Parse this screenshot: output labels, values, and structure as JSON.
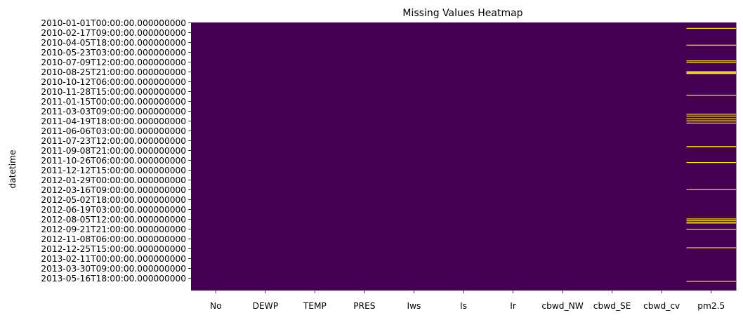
{
  "chart_data": {
    "type": "heatmap",
    "title": "Missing Values Heatmap",
    "xlabel": "",
    "ylabel": "datetime",
    "columns": [
      "No",
      "DEWP",
      "TEMP",
      "PRES",
      "Iws",
      "Is",
      "Ir",
      "cbwd_NW",
      "cbwd_SE",
      "cbwd_cv",
      "pm2.5"
    ],
    "y_tick_labels": [
      "2010-01-01T00:00:00.000000000",
      "2010-02-17T09:00:00.000000000",
      "2010-04-05T18:00:00.000000000",
      "2010-05-23T03:00:00.000000000",
      "2010-07-09T12:00:00.000000000",
      "2010-08-25T21:00:00.000000000",
      "2010-10-12T06:00:00.000000000",
      "2010-11-28T15:00:00.000000000",
      "2011-01-15T00:00:00.000000000",
      "2011-03-03T09:00:00.000000000",
      "2011-04-19T18:00:00.000000000",
      "2011-06-06T03:00:00.000000000",
      "2011-07-23T12:00:00.000000000",
      "2011-09-08T21:00:00.000000000",
      "2011-10-26T06:00:00.000000000",
      "2011-12-12T15:00:00.000000000",
      "2012-01-29T00:00:00.000000000",
      "2012-03-16T09:00:00.000000000",
      "2012-05-02T18:00:00.000000000",
      "2012-06-19T03:00:00.000000000",
      "2012-08-05T12:00:00.000000000",
      "2012-09-21T21:00:00.000000000",
      "2012-11-08T06:00:00.000000000",
      "2012-12-25T15:00:00.000000000",
      "2013-02-11T00:00:00.000000000",
      "2013-03-30T09:00:00.000000000",
      "2013-05-16T18:00:00.000000000"
    ],
    "values_legend": {
      "present": 0,
      "missing": 1
    },
    "missing_rows": {
      "pm2.5": [
        "2010-01-29T00:00:00.000000000",
        "2010-04-20T00:00:00.000000000",
        "2010-07-05T00:00:00.000000000",
        "2010-07-14T00:00:00.000000000",
        "2010-08-25T00:00:00.000000000",
        "2010-08-31T00:00:00.000000000",
        "2010-09-01T00:00:00.000000000",
        "2010-09-02T00:00:00.000000000",
        "2010-09-03T00:00:00.000000000",
        "2010-09-04T00:00:00.000000000",
        "2010-12-18T00:00:00.000000000",
        "2011-03-19T00:00:00.000000000",
        "2011-03-28T00:00:00.000000000",
        "2011-04-10T00:00:00.000000000",
        "2011-04-20T00:00:00.000000000",
        "2011-05-01T00:00:00.000000000",
        "2011-08-22T00:00:00.000000000",
        "2011-08-23T00:00:00.000000000",
        "2011-11-07T00:00:00.000000000",
        "2012-03-17T00:00:00.000000000",
        "2012-08-05T00:00:00.000000000",
        "2012-08-14T00:00:00.000000000",
        "2012-08-23T00:00:00.000000000",
        "2012-08-25T00:00:00.000000000",
        "2012-09-24T00:00:00.000000000",
        "2012-12-22T00:00:00.000000000",
        "2013-06-02T00:00:00.000000000"
      ]
    },
    "colors": {
      "present": "#440154",
      "missing": "#fde725"
    },
    "grid": false,
    "legend": "none"
  }
}
